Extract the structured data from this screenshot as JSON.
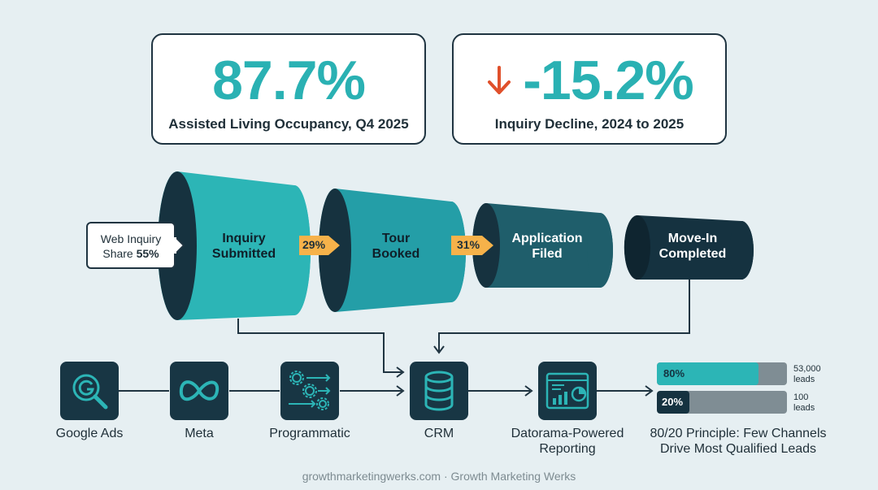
{
  "stats": [
    {
      "value": "87.7%",
      "caption": "Assisted Living Occupancy, Q4 2025",
      "color": "#2ab1b3"
    },
    {
      "value": "-15.2%",
      "caption": "Inquiry Decline, 2024 to 2025",
      "trend": "down-arrow-icon",
      "trend_color": "#e0502b"
    }
  ],
  "funnel": {
    "stages": [
      {
        "label_line1": "Inquiry",
        "label_line2": "Submitted",
        "color": "#2cb5b6"
      },
      {
        "label_line1": "Tour",
        "label_line2": "Booked",
        "color": "#249ea7"
      },
      {
        "label_line1": "Application",
        "label_line2": "Filed",
        "color": "#1f5e6b"
      },
      {
        "label_line1": "Move-In",
        "label_line2": "Completed",
        "color": "#153240"
      }
    ],
    "conversions": [
      "29%",
      "31%"
    ],
    "conversion_color": "#f6b24a",
    "callout": {
      "line1": "Web Inquiry",
      "line2_prefix": "Share ",
      "line2_value": "55%"
    }
  },
  "pipeline": {
    "nodes": [
      {
        "label": "Google Ads",
        "icon": "google-search-icon"
      },
      {
        "label": "Meta",
        "icon": "meta-infinity-icon"
      },
      {
        "label": "Programmatic",
        "icon": "gears-automation-icon"
      },
      {
        "label": "CRM",
        "icon": "database-icon"
      },
      {
        "label_line1": "Datorama-Powered",
        "label_line2": "Reporting",
        "icon": "dashboard-chart-icon"
      }
    ]
  },
  "pareto": {
    "bars": [
      {
        "label": "80%",
        "fill": 0.8,
        "note_line1": "53,000",
        "note_line2": "leads",
        "color": "#2cb5b6"
      },
      {
        "label": "20%",
        "fill": 0.2,
        "note_line1": "100",
        "note_line2": "leads",
        "color": "#153240"
      }
    ],
    "caption_line1": "80/20 Principle: Few Channels",
    "caption_line2": "Drive Most Qualified Leads"
  },
  "footer": "growthmarketingwerks.com · Growth Marketing Werks"
}
